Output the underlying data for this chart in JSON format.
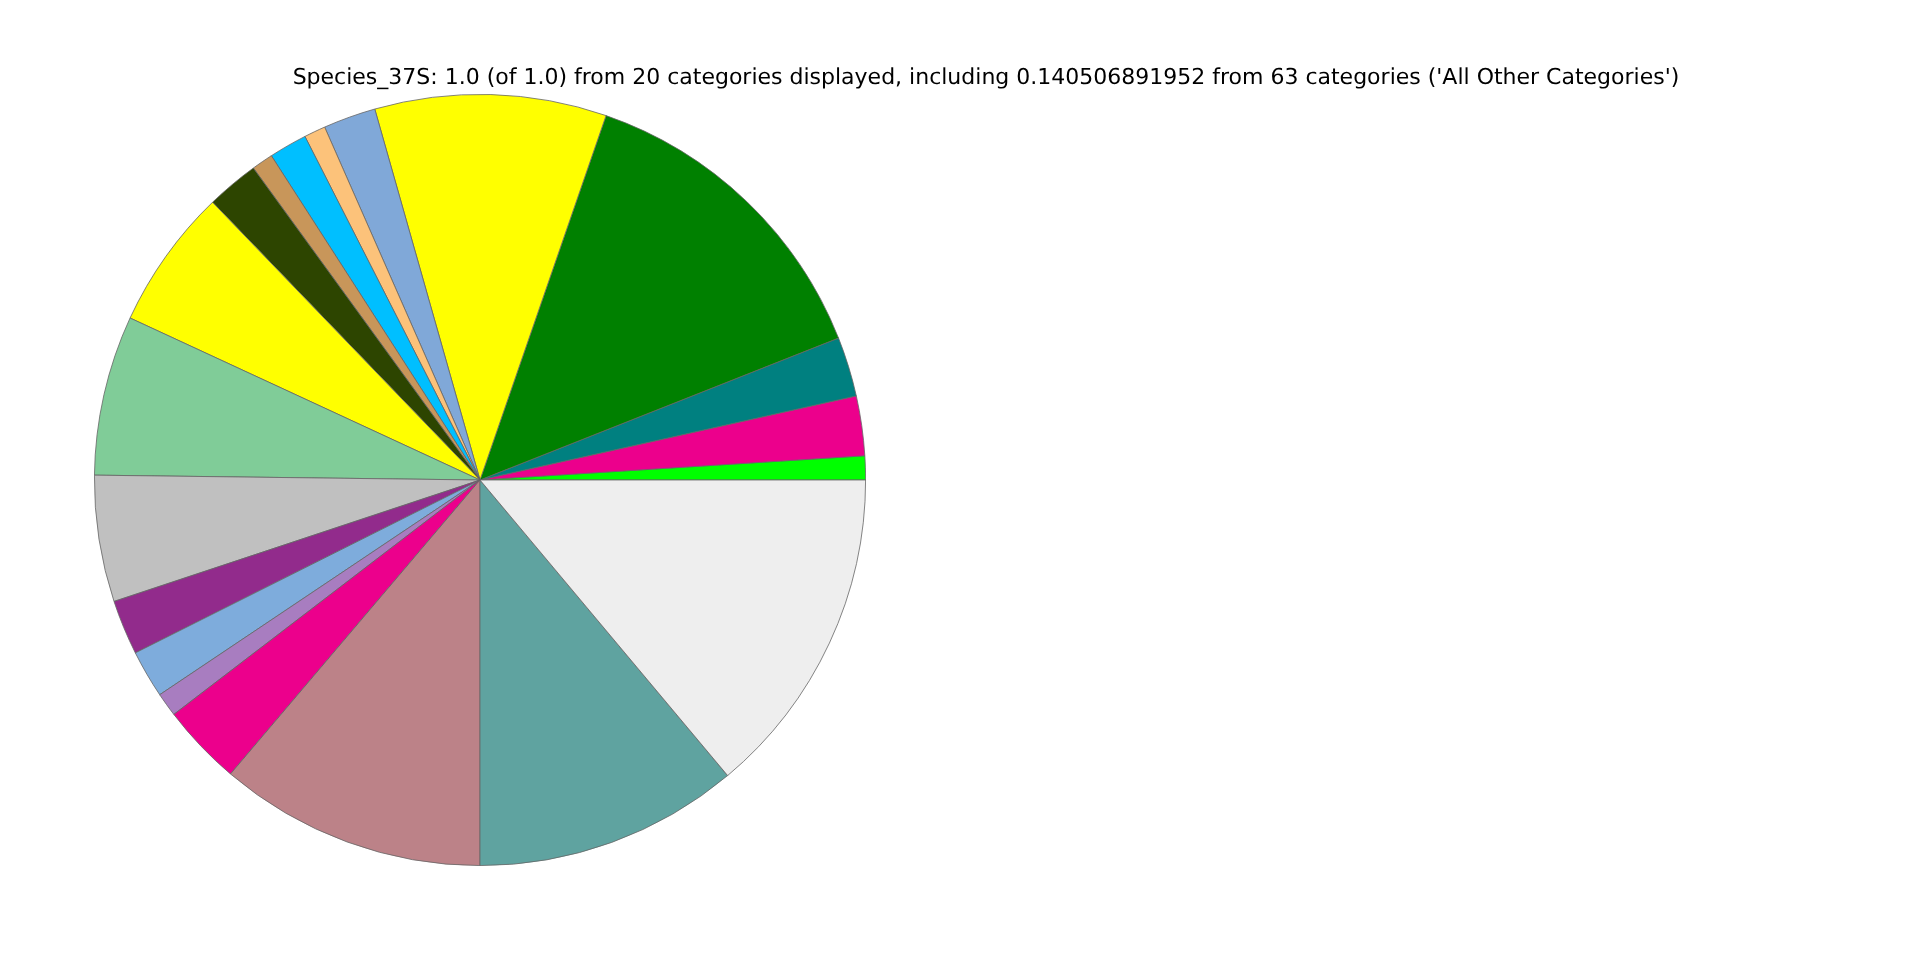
{
  "chart_data": {
    "type": "pie",
    "title": "Species_37S: 1.0 (of 1.0) from 20 categories displayed, including 0.140506891952 from 63 categories ('All Other Categories')",
    "categories": [
      null,
      null,
      null,
      null,
      null,
      null,
      null,
      null,
      null,
      null,
      null,
      null,
      null,
      null,
      null,
      null,
      null,
      null,
      null,
      null
    ],
    "values": [
      1.0,
      2.5,
      2.5,
      13.7,
      9.7,
      2.2,
      0.9,
      1.6,
      0.9,
      2.2,
      5.9,
      6.7,
      5.3,
      2.3,
      2.0,
      1.0,
      3.4,
      11.2,
      11.1,
      13.9
    ],
    "colors": [
      "#00ff00",
      "#ec008c",
      "#008080",
      "#008000",
      "#ffff00",
      "#80a8d8",
      "#fcc27a",
      "#00bfff",
      "#c8965a",
      "#2d4500",
      "#ffff00",
      "#80cc98",
      "#c0c0c0",
      "#922b8c",
      "#7eacdc",
      "#a87dc0",
      "#ec008c",
      "#bc8288",
      "#5fa3a0",
      "#eeeeee"
    ],
    "legend": false
  }
}
